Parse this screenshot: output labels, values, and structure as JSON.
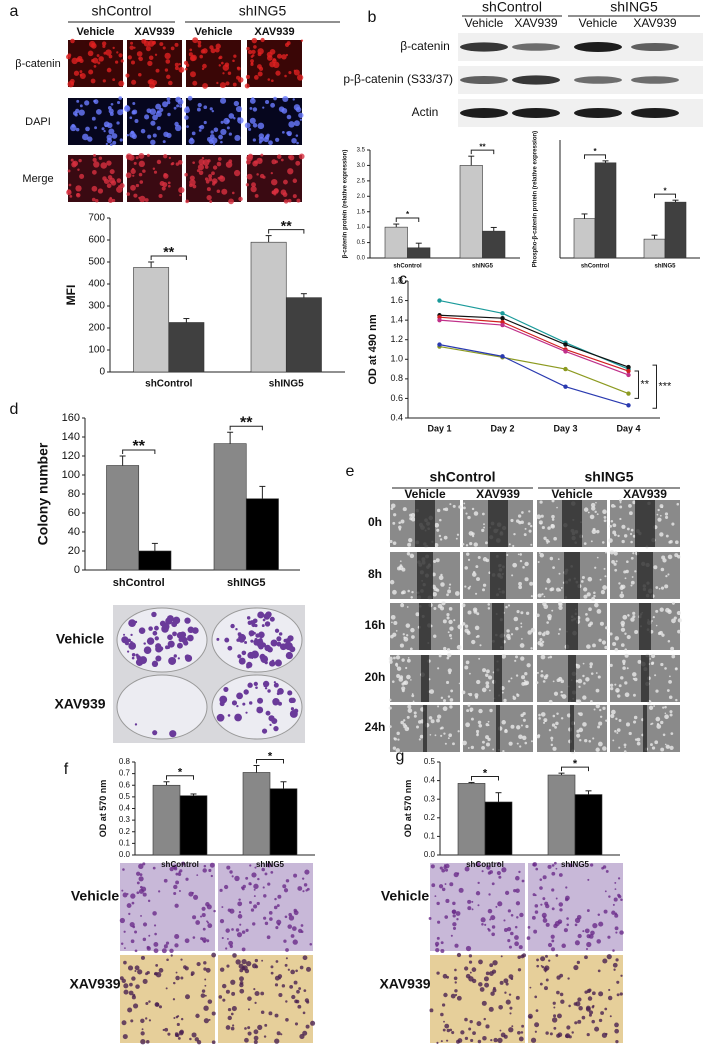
{
  "panels": {
    "a": {
      "label": "a",
      "groups": [
        "shControl",
        "shING5"
      ],
      "treatments": [
        "Vehicle",
        "XAV939",
        "Vehicle",
        "XAV939"
      ],
      "rows": [
        "β-catenin",
        "DAPI",
        "Merge"
      ]
    },
    "b": {
      "label": "b",
      "groups": [
        "shControl",
        "shING5"
      ],
      "treatments": [
        "Vehicle",
        "XAV939",
        "Vehicle",
        "XAV939"
      ],
      "rows": [
        "β-catenin",
        "p-β-catenin (S33/37)",
        "Actin"
      ]
    },
    "c": {
      "label": "c"
    },
    "d": {
      "label": "d",
      "rows": [
        "Vehicle",
        "XAV939"
      ]
    },
    "e": {
      "label": "e",
      "groups": [
        "shControl",
        "shING5"
      ],
      "treatments": [
        "Vehicle",
        "XAV939",
        "Vehicle",
        "XAV939"
      ],
      "rows": [
        "0h",
        "8h",
        "16h",
        "20h",
        "24h"
      ]
    },
    "f": {
      "label": "f",
      "rows": [
        "Vehicle",
        "XAV939"
      ]
    },
    "g": {
      "label": "g",
      "rows": [
        "Vehicle",
        "XAV939"
      ]
    }
  },
  "chart_data": [
    {
      "type": "bar",
      "ylabel": "MFI",
      "categories": [
        "shControl",
        "shING5"
      ],
      "series": [
        {
          "color": "#c8c8c8",
          "values": [
            475,
            590
          ],
          "errors": [
            25,
            30
          ]
        },
        {
          "color": "#404040",
          "values": [
            225,
            338
          ],
          "errors": [
            18,
            18
          ]
        }
      ],
      "ylim": [
        0,
        700
      ],
      "yticks": [
        0,
        100,
        200,
        300,
        400,
        500,
        600,
        700
      ],
      "annotations": [
        "**",
        "**"
      ]
    },
    {
      "type": "bar",
      "ylabel": "β-catenin protein (relative expression)",
      "categories": [
        "shControl",
        "shING5"
      ],
      "series": [
        {
          "color": "#c8c8c8",
          "values": [
            1.0,
            3.0
          ],
          "errors": [
            0.1,
            0.3
          ]
        },
        {
          "color": "#404040",
          "values": [
            0.33,
            0.87
          ],
          "errors": [
            0.15,
            0.12
          ]
        }
      ],
      "ylim": [
        0,
        3.5
      ],
      "yticks": [
        {
          "value": 0,
          "label": "0.0"
        },
        0.5,
        {
          "value": 1,
          "label": "1.0"
        },
        1.5,
        {
          "value": 2,
          "label": "2.0"
        },
        2.5,
        {
          "value": 3,
          "label": "3.0"
        },
        3.5
      ],
      "annotations": [
        "*",
        "**"
      ]
    },
    {
      "type": "bar",
      "ylabel": "Phospho-β-catenin protein (relative expression)",
      "categories": [
        "shControl",
        "shING5"
      ],
      "series": [
        {
          "color": "#c8c8c8",
          "values": [
            1.0,
            0.48
          ],
          "errors": [
            0.12,
            0.1
          ]
        },
        {
          "color": "#404040",
          "values": [
            2.42,
            1.42
          ],
          "errors": [
            0.05,
            0.05
          ]
        }
      ],
      "ylim": [
        0,
        3.0
      ],
      "annotations": [
        "*",
        "*"
      ]
    },
    {
      "type": "line",
      "ylabel": "OD at 490 nm",
      "categories": [
        "Day 1",
        "Day 2",
        "Day 3",
        "Day 4"
      ],
      "series": [
        {
          "color": "#1a9a9a",
          "values": [
            1.6,
            1.47,
            1.17,
            0.9
          ]
        },
        {
          "color": "#111111",
          "values": [
            1.45,
            1.42,
            1.15,
            0.92
          ]
        },
        {
          "color": "#d02020",
          "values": [
            1.43,
            1.38,
            1.1,
            0.88
          ]
        },
        {
          "color": "#c0308a",
          "values": [
            1.4,
            1.35,
            1.08,
            0.84
          ]
        },
        {
          "color": "#8c9a20",
          "values": [
            1.13,
            1.02,
            0.9,
            0.65
          ]
        },
        {
          "color": "#2a3ab0",
          "values": [
            1.15,
            1.03,
            0.72,
            0.53
          ]
        }
      ],
      "ylim": [
        0.4,
        1.8
      ],
      "yticks": [
        0.4,
        0.6,
        0.8,
        {
          "value": 1,
          "label": "1.0"
        },
        1.2,
        1.4,
        1.6,
        1.8
      ],
      "annotations": [
        "**",
        "***"
      ]
    },
    {
      "type": "bar",
      "ylabel": "Colony number",
      "categories": [
        "shControl",
        "shING5"
      ],
      "series": [
        {
          "color": "#888888",
          "values": [
            110,
            133
          ],
          "errors": [
            10,
            12
          ]
        },
        {
          "color": "#000000",
          "values": [
            20,
            75
          ],
          "errors": [
            8,
            13
          ]
        }
      ],
      "ylim": [
        0,
        160
      ],
      "yticks": [
        0,
        20,
        40,
        60,
        80,
        100,
        120,
        140,
        160
      ],
      "annotations": [
        "**",
        "**"
      ]
    },
    {
      "type": "bar",
      "ylabel": "OD at 570 nm",
      "categories": [
        "shControl",
        "shING5"
      ],
      "series": [
        {
          "color": "#888888",
          "values": [
            0.6,
            0.71
          ],
          "errors": [
            0.03,
            0.06
          ]
        },
        {
          "color": "#000000",
          "values": [
            0.51,
            0.57
          ],
          "errors": [
            0.015,
            0.06
          ]
        }
      ],
      "ylim": [
        0,
        0.8
      ],
      "yticks": [
        {
          "value": 0,
          "label": "0.0"
        },
        0.1,
        0.2,
        0.3,
        0.4,
        0.5,
        0.6,
        0.7,
        0.8
      ],
      "annotations": [
        "*",
        "*"
      ]
    },
    {
      "type": "bar",
      "ylabel": "OD at 570 nm",
      "categories": [
        "shControl",
        "shING5"
      ],
      "series": [
        {
          "color": "#888888",
          "values": [
            0.385,
            0.43
          ],
          "errors": [
            0.005,
            0.01
          ]
        },
        {
          "color": "#000000",
          "values": [
            0.285,
            0.325
          ],
          "errors": [
            0.05,
            0.02
          ]
        }
      ],
      "ylim": [
        0,
        0.5
      ],
      "yticks": [
        {
          "value": 0,
          "label": "0.0"
        },
        0.1,
        0.2,
        0.3,
        0.4,
        0.5
      ],
      "annotations": [
        "*",
        "*"
      ]
    }
  ]
}
